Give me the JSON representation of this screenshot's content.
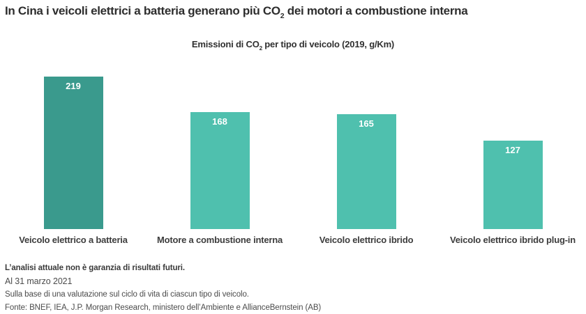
{
  "header": {
    "title_pre": "In Cina i veicoli elettrici a batteria generano più CO",
    "title_sub": "2",
    "title_post": " dei motori a combustione interna",
    "subtitle_pre": "Emissioni di CO",
    "subtitle_sub": "2",
    "subtitle_post": " per tipo di veicolo (2019, g/Km)"
  },
  "chart_data": {
    "type": "bar",
    "title": "Emissioni di CO2 per tipo di veicolo (2019, g/Km)",
    "categories": [
      "Veicolo elettrico a batteria",
      "Motore a combustione interna",
      "Veicolo elettrico ibrido",
      "Veicolo elettrico ibrido plug-in"
    ],
    "values": [
      219,
      168,
      165,
      127
    ],
    "value_labels": [
      "219",
      "168",
      "165",
      "127"
    ],
    "xlabel": "",
    "ylabel": "",
    "ylim": [
      0,
      235
    ],
    "grid": false,
    "legend": false,
    "value_labels_position": "inside-top"
  },
  "colors": {
    "background": "#ffffff",
    "bar_highlight": "#3a9a8d",
    "bar_default": "#4fc0ae",
    "title_text": "#2d2d2d",
    "axis_label_text": "#3d3d3d",
    "value_label_text": "#ffffff",
    "footnote_text": "#4b4b4b"
  },
  "footnotes": {
    "disclaimer": "L’analisi attuale non è garanzia di risultati futuri.",
    "as_of": "Al 31 marzo 2021",
    "method": "Sulla base di una valutazione sul ciclo di vita di ciascun tipo di veicolo.",
    "source": "Fonte: BNEF, IEA, J.P. Morgan Research, ministero dell’Ambiente e AllianceBernstein (AB)"
  }
}
